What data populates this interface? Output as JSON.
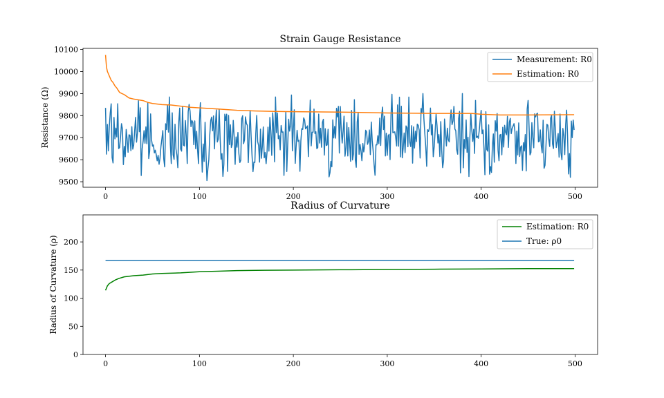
{
  "chart_data": [
    {
      "type": "line",
      "title": "Strain Gauge Resistance",
      "xlabel": "",
      "ylabel": "Resistance (Ω)",
      "xlim": [
        -24,
        524
      ],
      "ylim": [
        9475,
        10105
      ],
      "xticks": [
        0,
        100,
        200,
        300,
        400,
        500
      ],
      "yticks": [
        9500,
        9600,
        9700,
        9800,
        9900,
        10000,
        10100
      ],
      "xtick_labels": [
        "0",
        "100",
        "200",
        "300",
        "400",
        "500"
      ],
      "ytick_labels": [
        "9500",
        "9600",
        "9700",
        "9800",
        "9900",
        "10000",
        "10100"
      ],
      "grid": false,
      "legend": "top-right",
      "series": [
        {
          "name": "Measurement: R0",
          "color": "#1f77b4",
          "style": "noisy",
          "n": 500,
          "mean": 9700,
          "range": [
            9505,
            9900
          ],
          "first_points": [
            [
              0,
              9835
            ],
            [
              1,
              9625
            ],
            [
              2,
              9760
            ],
            [
              3,
              9640
            ],
            [
              4,
              9750
            ]
          ],
          "last_points": [
            [
              495,
              9520
            ],
            [
              496,
              9775
            ],
            [
              497,
              9700
            ],
            [
              498,
              9780
            ],
            [
              499,
              9735
            ]
          ]
        },
        {
          "name": "Estimation: R0",
          "color": "#ff7f0e",
          "points": [
            [
              0,
              10075
            ],
            [
              1,
              10020
            ],
            [
              2,
              10000
            ],
            [
              4,
              9980
            ],
            [
              6,
              9960
            ],
            [
              8,
              9950
            ],
            [
              10,
              9935
            ],
            [
              12,
              9925
            ],
            [
              15,
              9905
            ],
            [
              20,
              9895
            ],
            [
              25,
              9880
            ],
            [
              30,
              9875
            ],
            [
              40,
              9868
            ],
            [
              45,
              9860
            ],
            [
              50,
              9855
            ],
            [
              60,
              9850
            ],
            [
              70,
              9848
            ],
            [
              80,
              9843
            ],
            [
              90,
              9838
            ],
            [
              100,
              9835
            ],
            [
              120,
              9830
            ],
            [
              140,
              9824
            ],
            [
              160,
              9821
            ],
            [
              180,
              9819
            ],
            [
              200,
              9818
            ],
            [
              250,
              9816
            ],
            [
              300,
              9812
            ],
            [
              350,
              9810
            ],
            [
              390,
              9810
            ],
            [
              400,
              9806
            ],
            [
              420,
              9803
            ],
            [
              450,
              9803
            ],
            [
              499,
              9804
            ]
          ]
        }
      ]
    },
    {
      "type": "line",
      "title": "Radius of Curvature",
      "xlabel": "",
      "ylabel": "Radius of Curvature (ρ)",
      "xlim": [
        -24,
        524
      ],
      "ylim": [
        0,
        248
      ],
      "xticks": [
        0,
        100,
        200,
        300,
        400,
        500
      ],
      "yticks": [
        0,
        50,
        100,
        150,
        200
      ],
      "xtick_labels": [
        "0",
        "100",
        "200",
        "300",
        "400",
        "500"
      ],
      "ytick_labels": [
        "0",
        "50",
        "100",
        "150",
        "200"
      ],
      "grid": false,
      "legend": "top-right",
      "series": [
        {
          "name": "Estimation: R0",
          "color": "#008000",
          "points": [
            [
              0,
              114
            ],
            [
              2,
              122
            ],
            [
              4,
              126
            ],
            [
              7,
              129
            ],
            [
              10,
              132
            ],
            [
              14,
              135
            ],
            [
              20,
              138
            ],
            [
              30,
              140
            ],
            [
              40,
              141
            ],
            [
              50,
              143
            ],
            [
              60,
              144
            ],
            [
              80,
              145
            ],
            [
              100,
              147
            ],
            [
              120,
              148
            ],
            [
              140,
              149
            ],
            [
              160,
              149.5
            ],
            [
              200,
              150
            ],
            [
              250,
              150.5
            ],
            [
              300,
              151
            ],
            [
              350,
              151.5
            ],
            [
              400,
              152
            ],
            [
              450,
              152.5
            ],
            [
              499,
              152.5
            ]
          ]
        },
        {
          "name": "True: ρ0",
          "color": "#1f77b4",
          "points": [
            [
              0,
              167
            ],
            [
              499,
              167
            ]
          ]
        }
      ]
    }
  ]
}
